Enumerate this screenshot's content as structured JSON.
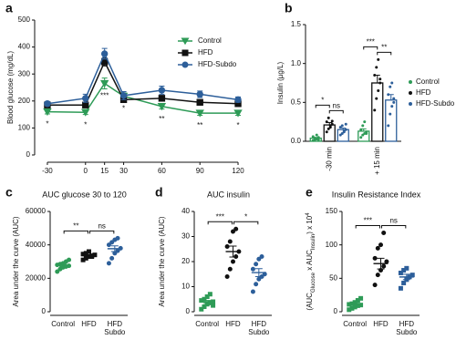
{
  "chart_data": [
    {
      "panel_label": "a",
      "type": "line",
      "y_label": "Blood glucose (mg/dL)",
      "x": [
        -30,
        0,
        15,
        30,
        60,
        90,
        120
      ],
      "xlim": [
        -40,
        125
      ],
      "xticks": [
        -30,
        0,
        15,
        30,
        60,
        90,
        120
      ],
      "ylim": [
        0,
        500
      ],
      "yticks": [
        0,
        100,
        200,
        300,
        400,
        500
      ],
      "series": [
        {
          "name": "Control",
          "color": "#2e9b57",
          "marker": "triangle-down",
          "values": [
            160,
            158,
            265,
            218,
            180,
            155,
            155
          ],
          "errors": [
            8,
            8,
            20,
            12,
            10,
            8,
            8
          ]
        },
        {
          "name": "HFD",
          "color": "#111111",
          "marker": "square",
          "values": [
            185,
            185,
            345,
            205,
            210,
            195,
            190
          ],
          "errors": [
            8,
            8,
            15,
            10,
            10,
            8,
            8
          ]
        },
        {
          "name": "HFD-Subdo",
          "color": "#2d5f9a",
          "marker": "circle",
          "values": [
            190,
            210,
            375,
            220,
            240,
            225,
            205
          ],
          "errors": [
            8,
            15,
            20,
            15,
            15,
            12,
            10
          ]
        }
      ],
      "control_significance": [
        "*",
        "*",
        "***",
        "*",
        "**",
        "**",
        "*"
      ]
    },
    {
      "panel_label": "b",
      "type": "bar",
      "y_label": "Insulin (µg/L)",
      "categories": [
        "-30 min",
        "+ 15 min"
      ],
      "ylim": [
        0,
        1.5
      ],
      "yticks": [
        {
          "value": 0,
          "label": "0.0"
        },
        0.5,
        {
          "value": 1,
          "label": "1.0"
        },
        1.5
      ],
      "series": [
        {
          "name": "Control",
          "color": "#2e9b57",
          "values": [
            0.04,
            0.13
          ],
          "errors": [
            0.01,
            0.03
          ],
          "points": [
            [
              0.01,
              0.02,
              0.03,
              0.05,
              0.06,
              0.04,
              0.08,
              0.02
            ],
            [
              0.05,
              0.08,
              0.1,
              0.12,
              0.15,
              0.2,
              0.25,
              0.1
            ]
          ]
        },
        {
          "name": "HFD",
          "color": "#111111",
          "values": [
            0.21,
            0.75
          ],
          "errors": [
            0.03,
            0.1
          ],
          "points": [
            [
              0.12,
              0.16,
              0.2,
              0.22,
              0.25,
              0.3,
              0.18,
              0.26
            ],
            [
              0.4,
              0.55,
              0.65,
              0.75,
              0.85,
              0.95,
              1.05,
              0.8
            ]
          ]
        },
        {
          "name": "HFD-Subdo",
          "color": "#2d5f9a",
          "values": [
            0.15,
            0.53
          ],
          "errors": [
            0.02,
            0.07
          ],
          "points": [
            [
              0.08,
              0.1,
              0.13,
              0.15,
              0.18,
              0.2,
              0.12,
              0.22
            ],
            [
              0.2,
              0.35,
              0.45,
              0.5,
              0.6,
              0.7,
              0.75,
              0.55
            ]
          ]
        }
      ],
      "significance": [
        [
          "*",
          "ns"
        ],
        [
          "***",
          "**"
        ]
      ]
    },
    {
      "panel_label": "c",
      "type": "dot",
      "title": "AUC glucose 30 to 120",
      "y_label": "Area under the curve (AUC)",
      "categories": [
        [
          "Control"
        ],
        [
          "HFD"
        ],
        [
          "HFD",
          "Subdo"
        ]
      ],
      "colors": [
        "#2e9b57",
        "#111111",
        "#2d5f9a"
      ],
      "markers": [
        "circle",
        "square",
        "circle"
      ],
      "ylim": [
        0,
        60000
      ],
      "yticks": [
        0,
        20000,
        40000,
        60000
      ],
      "points": [
        [
          24000,
          25500,
          26500,
          27000,
          27500,
          28000,
          28500,
          29000,
          30000,
          31000
        ],
        [
          31000,
          32000,
          33000,
          33500,
          34000,
          34500,
          35000,
          36000,
          33000
        ],
        [
          29000,
          32000,
          35000,
          36500,
          38000,
          40000,
          41500,
          43000,
          44000
        ]
      ],
      "means": [
        27700,
        33600,
        37700
      ],
      "sems": [
        700,
        500,
        1700
      ],
      "significance": [
        "**",
        "ns"
      ]
    },
    {
      "panel_label": "d",
      "type": "dot",
      "title": "AUC insulin",
      "y_label": "Area under the curve (AUC)",
      "categories": [
        [
          "Control"
        ],
        [
          "HFD"
        ],
        [
          "HFD",
          "Subdo"
        ]
      ],
      "colors": [
        "#2e9b57",
        "#111111",
        "#2d5f9a"
      ],
      "markers": [
        "square",
        "circle",
        "circle"
      ],
      "ylim": [
        0,
        40
      ],
      "yticks": [
        0,
        10,
        20,
        30,
        40
      ],
      "points": [
        [
          1,
          2,
          3,
          3.5,
          4,
          4.5,
          5,
          6,
          7,
          2.5
        ],
        [
          14,
          17,
          20,
          22,
          24,
          26,
          28,
          32,
          33
        ],
        [
          8,
          11,
          13,
          14,
          15,
          17,
          19,
          21,
          22
        ]
      ],
      "means": [
        3.9,
        24,
        15.6
      ],
      "sems": [
        0.6,
        2.2,
        1.6
      ],
      "significance": [
        "***",
        "*"
      ]
    },
    {
      "panel_label": "e",
      "type": "dot",
      "title": "Insulin Resistance Index",
      "y_label": [
        "(AUC",
        "Glucose",
        " x AUC",
        "Insulin",
        ") x 10",
        "4"
      ],
      "categories": [
        [
          "Control"
        ],
        [
          "HFD"
        ],
        [
          "HFD",
          "Subdo"
        ]
      ],
      "colors": [
        "#2e9b57",
        "#111111",
        "#2d5f9a"
      ],
      "markers": [
        "square",
        "circle",
        "square"
      ],
      "ylim": [
        0,
        150
      ],
      "yticks": [
        0,
        50,
        100,
        150
      ],
      "points": [
        [
          3,
          5,
          7,
          9,
          10,
          11,
          12,
          14,
          17,
          20
        ],
        [
          40,
          55,
          62,
          68,
          75,
          80,
          95,
          100,
          118
        ],
        [
          35,
          43,
          48,
          52,
          55,
          58,
          62,
          65
        ]
      ],
      "means": [
        11,
        72,
        52
      ],
      "sems": [
        1.7,
        8,
        4
      ],
      "significance": [
        "***",
        "ns"
      ]
    }
  ]
}
